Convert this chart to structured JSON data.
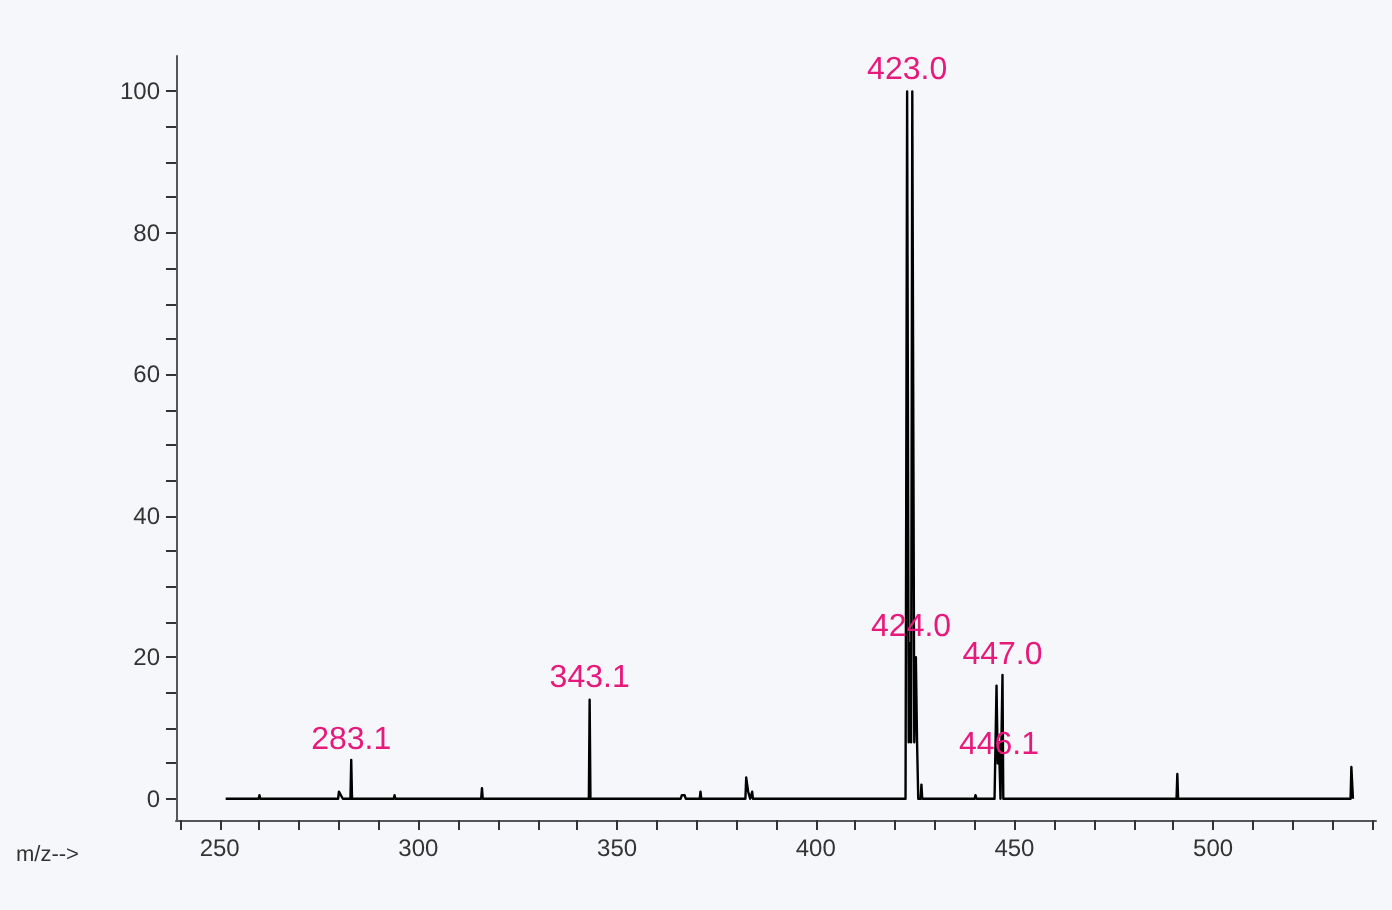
{
  "chart_data": {
    "type": "line",
    "xlabel": "m/z-->",
    "series": [
      {
        "color": "#000000",
        "x": [
          251.5,
          259.8,
          260,
          260.2,
          279.8,
          280,
          280.5,
          281,
          282.9,
          283.1,
          283.3,
          293.8,
          294,
          294.2,
          315.8,
          316,
          316.2,
          342.9,
          343.1,
          343.3,
          366,
          366.3,
          367,
          367.3,
          370.8,
          371,
          371.2,
          382.3,
          382.5,
          383,
          383.5,
          384,
          384.2,
          422.6,
          423,
          423.4,
          423.7,
          424,
          424.3,
          424.8,
          425.2,
          425.5,
          425.8,
          426.4,
          426.6,
          426.8,
          440,
          440.2,
          440.5,
          445,
          445.5,
          445.8,
          446.1,
          446.5,
          447,
          447.2,
          490.8,
          491,
          491.2,
          534.6,
          534.8,
          535.2
        ],
        "values": [
          0,
          0,
          0.5,
          0,
          0,
          1,
          0.5,
          0,
          0,
          5.5,
          0,
          0,
          0.5,
          0,
          0,
          1.5,
          0,
          0,
          14,
          0,
          0,
          0.5,
          0.5,
          0,
          0,
          1,
          0,
          0,
          3,
          1,
          0,
          1,
          0,
          0,
          100,
          8,
          22,
          8,
          100,
          8,
          20,
          8,
          0,
          0,
          2,
          0,
          0,
          0.5,
          0,
          0,
          16,
          5,
          8,
          0,
          17.5,
          0,
          0,
          3.5,
          0,
          0,
          4.5,
          0
        ]
      }
    ],
    "xlim": [
      239,
      541
    ],
    "xticks": [
      {
        "value": 240,
        "label": null
      },
      250,
      {
        "value": 260,
        "label": null
      },
      {
        "value": 270,
        "label": null
      },
      {
        "value": 280,
        "label": null
      },
      {
        "value": 290,
        "label": null
      },
      300,
      {
        "value": 310,
        "label": null
      },
      {
        "value": 320,
        "label": null
      },
      {
        "value": 330,
        "label": null
      },
      {
        "value": 340,
        "label": null
      },
      350,
      {
        "value": 360,
        "label": null
      },
      {
        "value": 370,
        "label": null
      },
      {
        "value": 380,
        "label": null
      },
      {
        "value": 390,
        "label": null
      },
      400,
      {
        "value": 410,
        "label": null
      },
      {
        "value": 420,
        "label": null
      },
      {
        "value": 430,
        "label": null
      },
      {
        "value": 440,
        "label": null
      },
      450,
      {
        "value": 460,
        "label": null
      },
      {
        "value": 470,
        "label": null
      },
      {
        "value": 480,
        "label": null
      },
      {
        "value": 490,
        "label": null
      },
      500,
      {
        "value": 510,
        "label": null
      },
      {
        "value": 520,
        "label": null
      },
      {
        "value": 530,
        "label": null
      },
      {
        "value": 540,
        "label": null
      }
    ],
    "ylim": [
      -3,
      105
    ],
    "yticks": [
      0,
      {
        "value": 5,
        "label": null
      },
      {
        "value": 10,
        "label": null
      },
      {
        "value": 15,
        "label": null
      },
      20,
      {
        "value": 25,
        "label": null
      },
      {
        "value": 30,
        "label": null
      },
      {
        "value": 35,
        "label": null
      },
      40,
      {
        "value": 45,
        "label": null
      },
      {
        "value": 50,
        "label": null
      },
      {
        "value": 55,
        "label": null
      },
      60,
      {
        "value": 65,
        "label": null
      },
      {
        "value": 70,
        "label": null
      },
      {
        "value": 75,
        "label": null
      },
      80,
      {
        "value": 85,
        "label": null
      },
      {
        "value": 90,
        "label": null
      },
      {
        "value": 95,
        "label": null
      },
      100
    ],
    "annotations": [
      {
        "text": "283.1",
        "x": 283.1,
        "y": 6
      },
      {
        "text": "343.1",
        "x": 343.1,
        "y": 14.8
      },
      {
        "text": "423.0",
        "x": 423,
        "y": 100.8
      },
      {
        "text": "424.0",
        "x": 424,
        "y": 22
      },
      {
        "text": "447.0",
        "x": 447,
        "y": 18
      },
      {
        "text": "446.1",
        "x": 446.1,
        "y": 5.4
      }
    ],
    "grid": false,
    "marker": "none",
    "line_style": "solid"
  }
}
